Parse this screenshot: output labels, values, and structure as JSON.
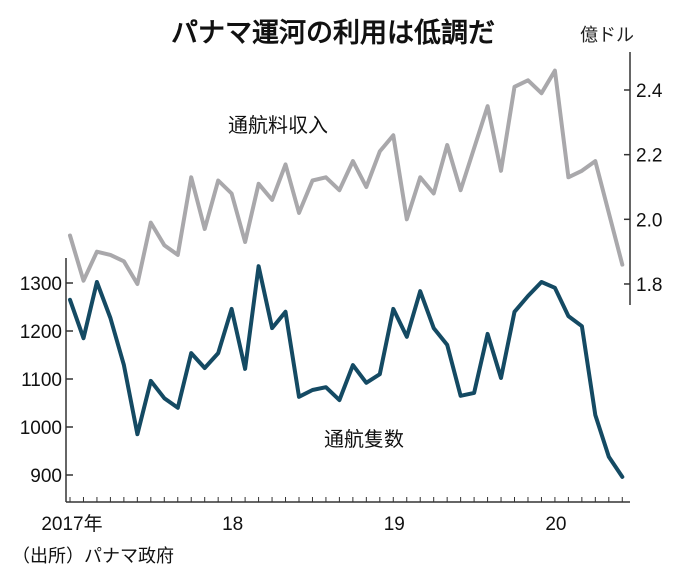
{
  "chart_data": {
    "type": "line",
    "title": "パナマ運河の利用は低調だ",
    "right_unit": "億ドル",
    "source": "（出所）パナマ政府",
    "x_start": "2017-01",
    "x_end": "2020-06",
    "x_ticks": [
      {
        "label": "2017年",
        "month_index": 0
      },
      {
        "label": "18",
        "month_index": 12
      },
      {
        "label": "19",
        "month_index": 24
      },
      {
        "label": "20",
        "month_index": 36
      }
    ],
    "left_axis": {
      "ylim": [
        845,
        1360
      ],
      "ticks": [
        900,
        1000,
        1100,
        1200,
        1300
      ]
    },
    "right_axis": {
      "ylim": [
        1.73,
        2.52
      ],
      "ticks": [
        "1.8",
        "2.0",
        "2.2",
        "2.4"
      ],
      "tick_values": [
        1.8,
        2.0,
        2.2,
        2.4
      ]
    },
    "grid": false,
    "series": [
      {
        "name": "通航料収入",
        "axis": "right",
        "color": "#a9a8ab",
        "values": [
          1.95,
          1.81,
          1.9,
          1.89,
          1.87,
          1.8,
          1.99,
          1.92,
          1.89,
          2.13,
          1.97,
          2.12,
          2.08,
          1.93,
          2.11,
          2.06,
          2.17,
          2.02,
          2.12,
          2.13,
          2.09,
          2.18,
          2.1,
          2.21,
          2.26,
          2.0,
          2.13,
          2.08,
          2.23,
          2.09,
          2.22,
          2.35,
          2.15,
          2.41,
          2.43,
          2.39,
          2.46,
          2.13,
          2.15,
          2.18,
          2.02,
          1.86
        ]
      },
      {
        "name": "通航隻数",
        "axis": "left",
        "color": "#144a63",
        "values": [
          1265,
          1185,
          1302,
          1227,
          1129,
          985,
          1096,
          1060,
          1040,
          1154,
          1123,
          1154,
          1246,
          1121,
          1335,
          1206,
          1240,
          1063,
          1077,
          1083,
          1056,
          1129,
          1092,
          1110,
          1246,
          1188,
          1283,
          1206,
          1171,
          1065,
          1071,
          1194,
          1102,
          1240,
          1273,
          1302,
          1290,
          1231,
          1210,
          1025,
          938,
          896
        ]
      }
    ]
  }
}
